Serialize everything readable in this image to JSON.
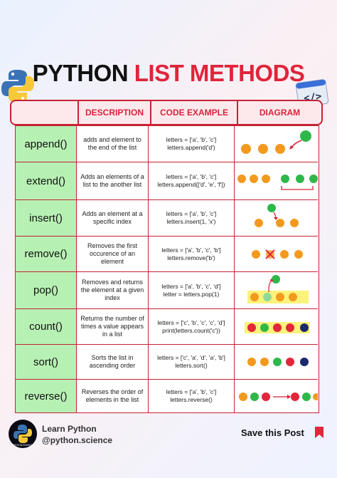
{
  "title": {
    "part1": "PYTHON",
    "part2": "LIST METHODS"
  },
  "headers": {
    "method": "",
    "description": "DESCRIPTION",
    "code": "CODE EXAMPLE",
    "diagram": "DIAGRAM"
  },
  "rows": [
    {
      "method": "append()",
      "description": "adds and element to the end of the list",
      "code": [
        "letters = ['a', 'b', 'c']",
        "letters.append('d')"
      ]
    },
    {
      "method": "extend()",
      "description": "Adds an elements of a list to the another list",
      "code": [
        "letters = ['a', 'b', 'c']",
        "letters.append(['d', 'e', 'f'])"
      ]
    },
    {
      "method": "insert()",
      "description": "Adds an element at a specific index",
      "code": [
        "letters = ['a', 'b', 'c']",
        "letters.insert(1, 'x')"
      ]
    },
    {
      "method": "remove()",
      "description": "Removes the first occurence of an element",
      "code": [
        "letters = ['a', 'b', 'c', 'b']",
        "letters.remove('b')"
      ]
    },
    {
      "method": "pop()",
      "description": "Removes and returns the element at a given index",
      "code": [
        "letters = ['a', 'b', 'c', 'd']",
        "letter = letters.pop(1)"
      ]
    },
    {
      "method": "count()",
      "description": "Returns the number of times a value appears in a list",
      "code": [
        "letters = ['c', 'b', 'c', 'c', 'd']",
        "print(letters.count('c'))"
      ]
    },
    {
      "method": "sort()",
      "description": "Sorts the list in ascending order",
      "code": [
        "letters = ['c', 'a', 'd', 'a', 'b']",
        "letters.sort()"
      ]
    },
    {
      "method": "reverse()",
      "description": "Reverses the order of elements in the list",
      "code": [
        "letters = ['a', 'b', 'c']",
        "letters.reverse()"
      ]
    }
  ],
  "colors": {
    "orange": "#f39a1e",
    "green": "#2fb84a",
    "red": "#e3263a",
    "navy": "#1a2a6c",
    "method_bg": "#b7f0b3",
    "accent": "#d8233b"
  },
  "footer": {
    "brand_line1": "Learn Python",
    "brand_line2": "@python.science",
    "avatar_text": "PYTHON.SCIENCE",
    "save_label": "Save this Post",
    "save_icon": "bookmark-icon"
  },
  "icons": {
    "top_left": "python-logo-icon",
    "top_right": "code-window-icon"
  }
}
